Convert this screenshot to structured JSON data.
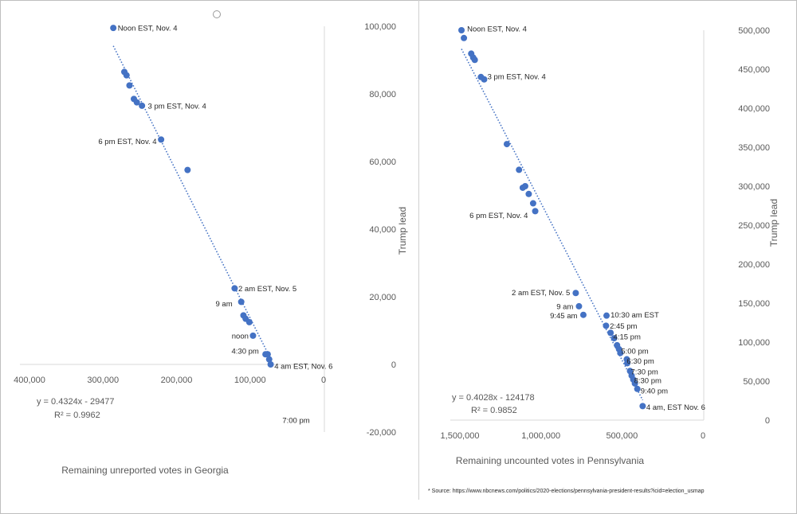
{
  "chart_data": [
    {
      "type": "scatter",
      "title": "",
      "xlabel": "Remaining unreported votes in Georgia",
      "ylabel": "Trump lead",
      "xlim": [
        400000,
        0
      ],
      "ylim": [
        -20000,
        100000
      ],
      "x_ticks": [
        "400,000",
        "300,000",
        "200,000",
        "100,000",
        "0"
      ],
      "y_ticks": [
        "100,000",
        "80,000",
        "60,000",
        "40,000",
        "20,000",
        "0",
        "-20,000"
      ],
      "x_tick_values": [
        400000,
        300000,
        200000,
        100000,
        0
      ],
      "y_tick_values": [
        100000,
        80000,
        60000,
        40000,
        20000,
        0,
        -20000
      ],
      "grid": false,
      "point_color": "#4472c4",
      "trendline": {
        "style": "dotted",
        "slope": 0.4324,
        "intercept": -29477
      },
      "equation": "y = 0.4324x - 29477",
      "r_squared": "R² = 0.9962",
      "points": [
        {
          "x": 286000,
          "y": 99500
        },
        {
          "x": 271000,
          "y": 86500
        },
        {
          "x": 268000,
          "y": 85500
        },
        {
          "x": 264000,
          "y": 82500
        },
        {
          "x": 258000,
          "y": 78500
        },
        {
          "x": 254000,
          "y": 77500
        },
        {
          "x": 247000,
          "y": 76500
        },
        {
          "x": 221000,
          "y": 66500
        },
        {
          "x": 185000,
          "y": 57500
        },
        {
          "x": 121000,
          "y": 22500
        },
        {
          "x": 112000,
          "y": 18500
        },
        {
          "x": 109000,
          "y": 14500
        },
        {
          "x": 106000,
          "y": 13500
        },
        {
          "x": 101000,
          "y": 12500
        },
        {
          "x": 96000,
          "y": 8500
        },
        {
          "x": 79000,
          "y": 3000
        },
        {
          "x": 76000,
          "y": 3000
        },
        {
          "x": 74000,
          "y": 1500
        },
        {
          "x": 72000,
          "y": 0
        }
      ],
      "annotations": [
        {
          "text": "Noon EST, Nov. 4",
          "x": 280000,
          "y": 99500,
          "anchor": "start"
        },
        {
          "text": "3 pm EST, Nov. 4",
          "x": 239000,
          "y": 76500,
          "anchor": "start"
        },
        {
          "text": "6 pm EST, Nov. 4",
          "x": 227000,
          "y": 66000,
          "anchor": "end"
        },
        {
          "text": "2 am EST, Nov. 5",
          "x": 116000,
          "y": 22500,
          "anchor": "start"
        },
        {
          "text": "9 am",
          "x": 124000,
          "y": 18000,
          "anchor": "end"
        },
        {
          "text": "noon",
          "x": 102000,
          "y": 8500,
          "anchor": "end"
        },
        {
          "text": "4:30 pm",
          "x": 88000,
          "y": 4000,
          "anchor": "end"
        },
        {
          "text": "4 am EST, Nov. 6",
          "x": 67000,
          "y": -500,
          "anchor": "start"
        },
        {
          "text": "7:00 pm",
          "x": 56000,
          "y": -16500,
          "anchor": "start"
        }
      ]
    },
    {
      "type": "scatter",
      "title": "",
      "xlabel": "Remaining uncounted votes in Pennsylvania",
      "ylabel": "Trump lead",
      "xlim": [
        1500000,
        0
      ],
      "ylim": [
        0,
        500000
      ],
      "x_ticks": [
        "1,500,000",
        "1,000,000",
        "500,000",
        "0"
      ],
      "y_ticks": [
        "500,000",
        "450,000",
        "400,000",
        "350,000",
        "300,000",
        "250,000",
        "200,000",
        "150,000",
        "100,000",
        "50,000",
        "0"
      ],
      "x_tick_values": [
        1500000,
        1000000,
        500000,
        0
      ],
      "y_tick_values": [
        500000,
        450000,
        400000,
        350000,
        300000,
        250000,
        200000,
        150000,
        100000,
        50000,
        0
      ],
      "grid": false,
      "point_color": "#4472c4",
      "trendline": {
        "style": "dotted",
        "slope": 0.4028,
        "intercept": -124178
      },
      "equation": "y = 0.4028x - 124178",
      "r_squared": "R² = 0.9852",
      "points": [
        {
          "x": 1490000,
          "y": 500000
        },
        {
          "x": 1475000,
          "y": 490000
        },
        {
          "x": 1430000,
          "y": 470000
        },
        {
          "x": 1418000,
          "y": 465000
        },
        {
          "x": 1408000,
          "y": 462000
        },
        {
          "x": 1370000,
          "y": 440000
        },
        {
          "x": 1350000,
          "y": 437000
        },
        {
          "x": 1210000,
          "y": 354000
        },
        {
          "x": 1135000,
          "y": 321000
        },
        {
          "x": 1112000,
          "y": 298000
        },
        {
          "x": 1097000,
          "y": 300000
        },
        {
          "x": 1075000,
          "y": 290000
        },
        {
          "x": 1048000,
          "y": 278000
        },
        {
          "x": 1035000,
          "y": 268000
        },
        {
          "x": 785000,
          "y": 163000
        },
        {
          "x": 765000,
          "y": 146000
        },
        {
          "x": 738000,
          "y": 135000
        },
        {
          "x": 595000,
          "y": 134000
        },
        {
          "x": 598000,
          "y": 121000
        },
        {
          "x": 570000,
          "y": 112000
        },
        {
          "x": 548000,
          "y": 105000
        },
        {
          "x": 530000,
          "y": 96000
        },
        {
          "x": 518000,
          "y": 91000
        },
        {
          "x": 510000,
          "y": 86000
        },
        {
          "x": 470000,
          "y": 78000
        },
        {
          "x": 467000,
          "y": 73000
        },
        {
          "x": 450000,
          "y": 63000
        },
        {
          "x": 440000,
          "y": 57000
        },
        {
          "x": 430000,
          "y": 52000
        },
        {
          "x": 420000,
          "y": 47000
        },
        {
          "x": 405000,
          "y": 40000
        },
        {
          "x": 372000,
          "y": 18000
        }
      ],
      "annotations": [
        {
          "text": "Noon EST, Nov. 4",
          "x": 1455000,
          "y": 502000,
          "anchor": "start"
        },
        {
          "text": "3 pm EST, Nov. 4",
          "x": 1330000,
          "y": 441000,
          "anchor": "start"
        },
        {
          "text": "6 pm EST, Nov. 4",
          "x": 1080000,
          "y": 263000,
          "anchor": "end"
        },
        {
          "text": "2 am EST, Nov. 5",
          "x": 820000,
          "y": 164000,
          "anchor": "end"
        },
        {
          "text": "9 am",
          "x": 800000,
          "y": 146000,
          "anchor": "end"
        },
        {
          "text": "9:45 am",
          "x": 775000,
          "y": 134000,
          "anchor": "end"
        },
        {
          "text": "10:30 am EST",
          "x": 570000,
          "y": 135000,
          "anchor": "start"
        },
        {
          "text": "2:45 pm",
          "x": 575000,
          "y": 121000,
          "anchor": "start"
        },
        {
          "text": "4:15 pm",
          "x": 553000,
          "y": 107000,
          "anchor": "start"
        },
        {
          "text": "5:00 pm",
          "x": 505000,
          "y": 89000,
          "anchor": "start"
        },
        {
          "text": "6:30 pm",
          "x": 470000,
          "y": 76000,
          "anchor": "start"
        },
        {
          "text": "7:30 pm",
          "x": 445000,
          "y": 62000,
          "anchor": "start"
        },
        {
          "text": "8:30 pm",
          "x": 425000,
          "y": 51000,
          "anchor": "start"
        },
        {
          "text": "9:40 pm",
          "x": 385000,
          "y": 38000,
          "anchor": "start"
        },
        {
          "text": "4 am, EST Nov. 6",
          "x": 350000,
          "y": 17000,
          "anchor": "start"
        }
      ]
    }
  ],
  "source_note": "* Source: https://www.nbcnews.com/politics/2020-elections/pennsylvania-president-results?icid=election_usmap"
}
